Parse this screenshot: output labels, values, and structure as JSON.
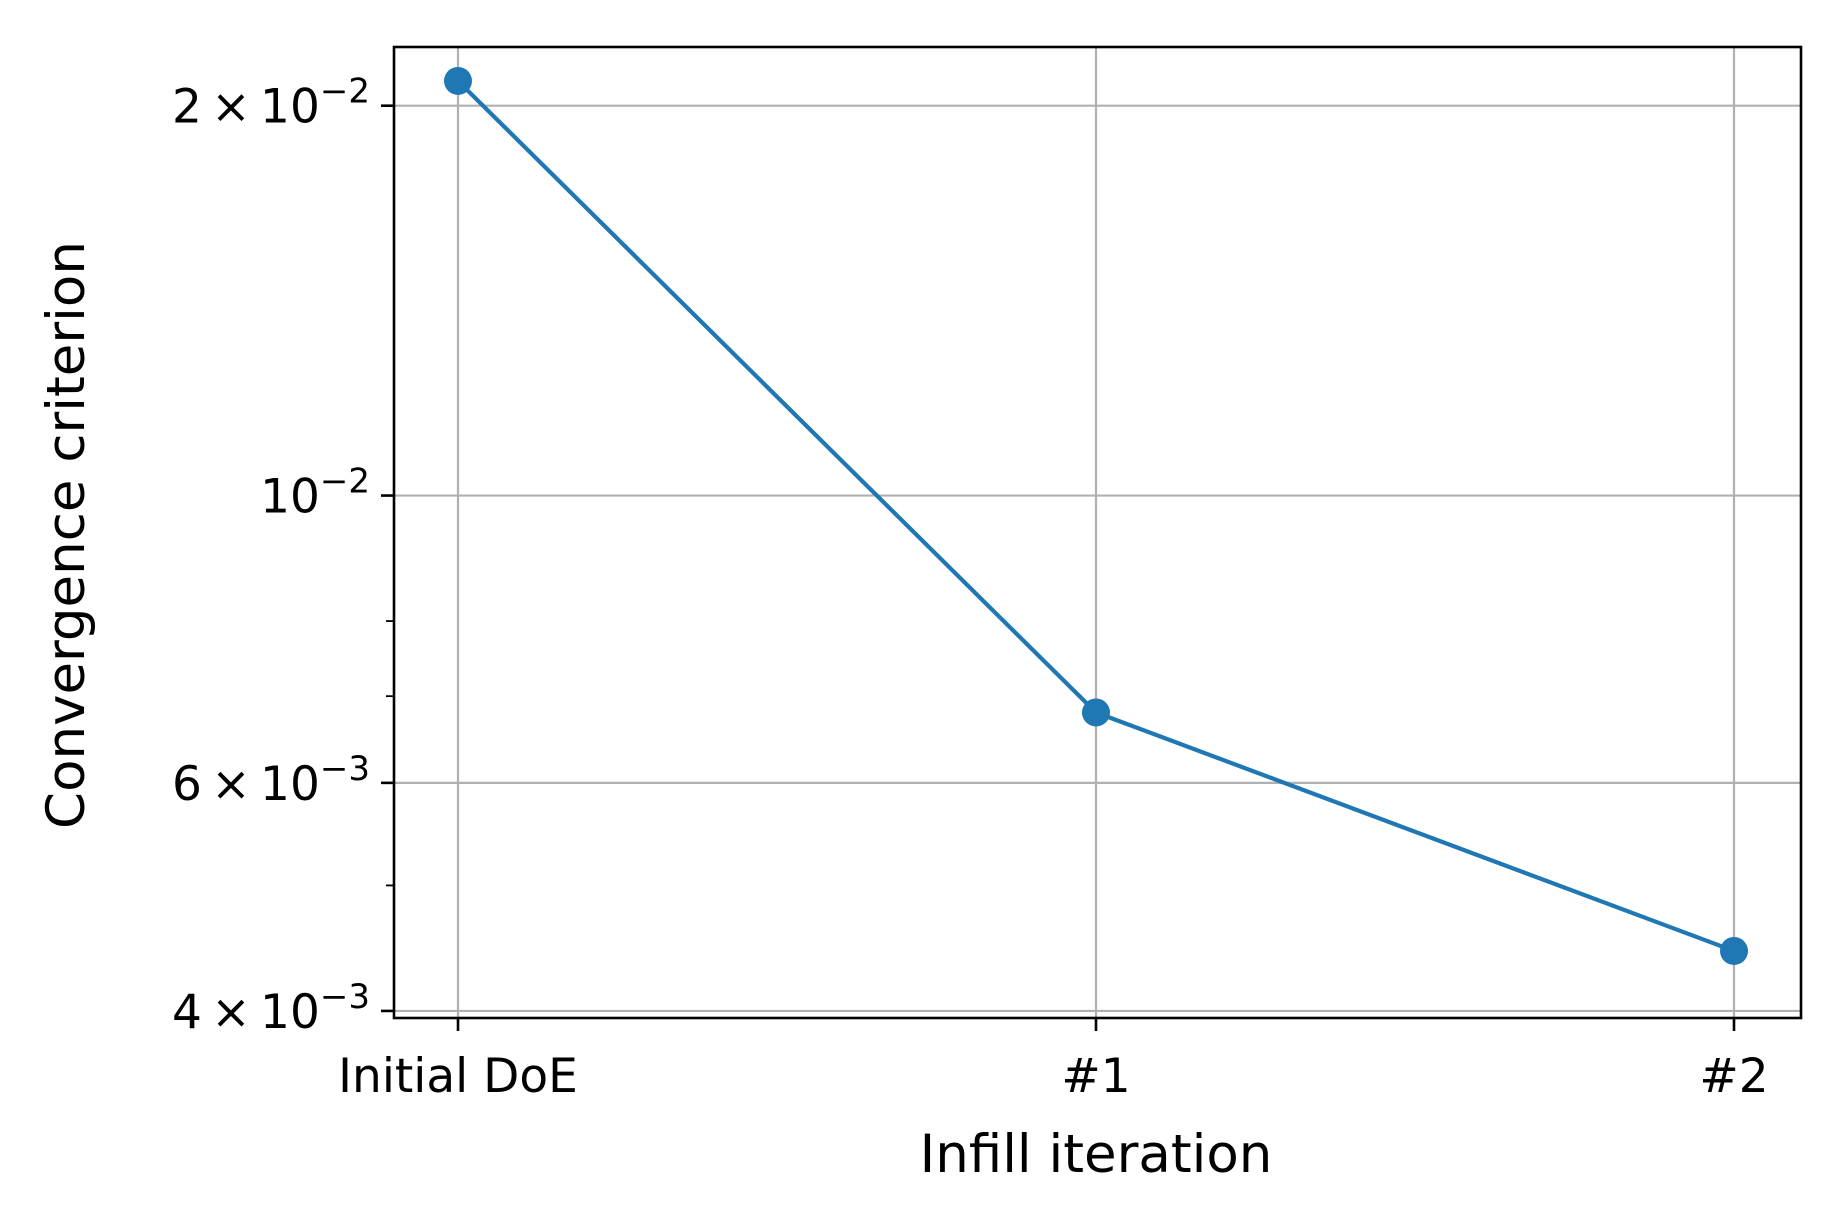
{
  "chart_data": {
    "type": "line",
    "title": "",
    "xlabel": "Infill iteration",
    "ylabel": "Convergence criterion",
    "yscale": "log",
    "ylim": [
      0.00395,
      0.0222
    ],
    "grid": true,
    "categories": [
      "Initial DoE",
      "#1",
      "#2"
    ],
    "series": [
      {
        "values": [
          0.0209,
          0.0068,
          0.00445
        ],
        "color": "#1f77b4",
        "marker": "circle"
      }
    ],
    "y_major_ticks": [
      {
        "value": 0.02,
        "mantissa": "2",
        "exponent": "−2"
      },
      {
        "value": 0.01,
        "mantissa": "",
        "exponent": "−2"
      },
      {
        "value": 0.006,
        "mantissa": "6",
        "exponent": "−3"
      },
      {
        "value": 0.004,
        "mantissa": "4",
        "exponent": "−3"
      }
    ],
    "y_minor_ticks": [
      0.008,
      0.007,
      0.005
    ],
    "colors": {
      "line": "#1f77b4",
      "grid": "#b0b0b0",
      "axes": "#000000"
    }
  }
}
